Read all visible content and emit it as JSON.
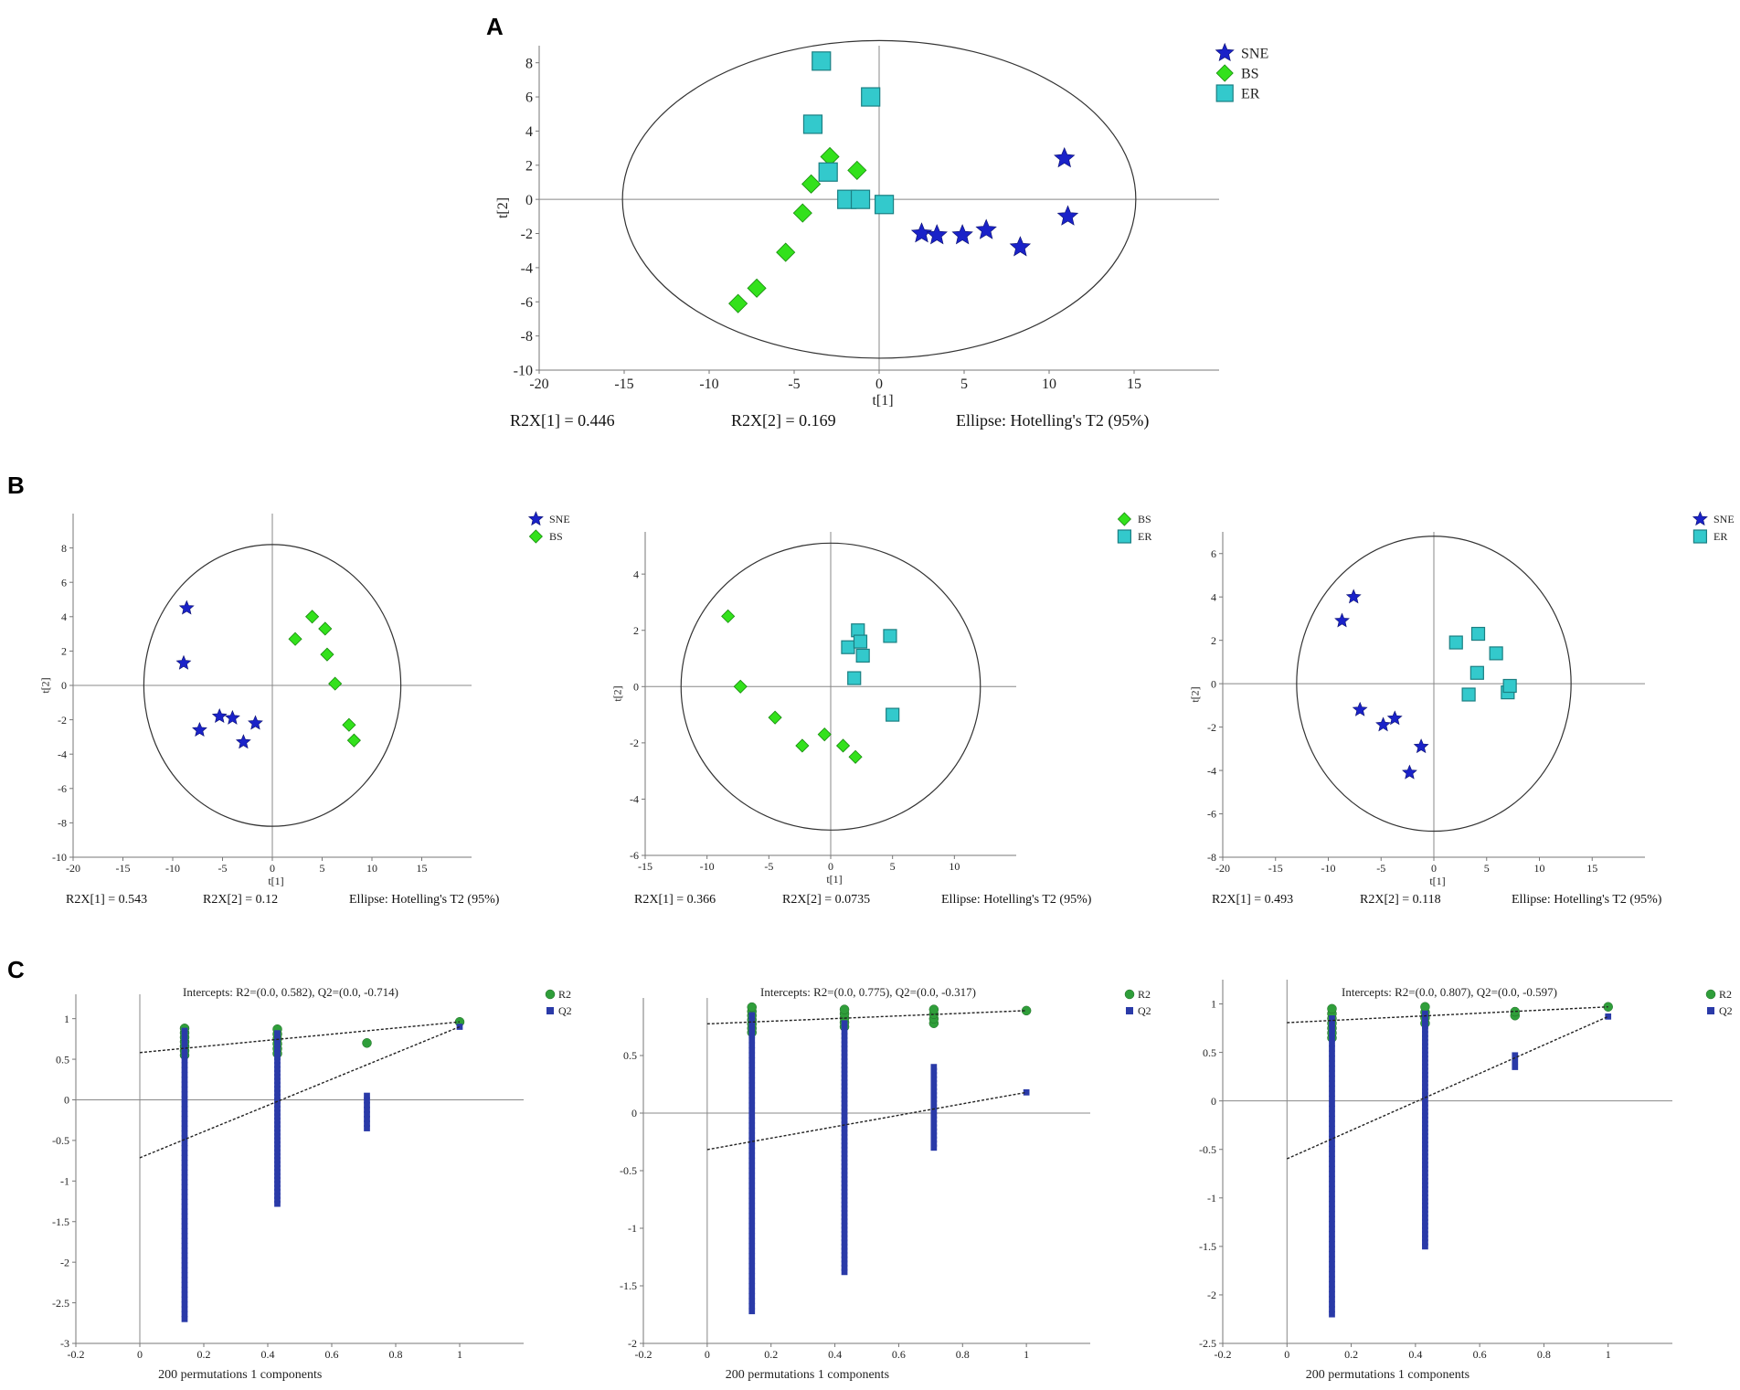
{
  "panel_labels": {
    "a": "A",
    "b": "B",
    "c": "C"
  },
  "colors": {
    "SNE": "#1a22c8",
    "BS": "#33e11c",
    "ER": "#33c9cc",
    "R2": "#2f9e3a",
    "Q2": "#2a3aa8"
  },
  "chart_data": [
    {
      "id": "A",
      "type": "scatter",
      "title": "",
      "xlabel": "t[1]",
      "ylabel": "t[2]",
      "xlim": [
        -20,
        20
      ],
      "ylim": [
        -10,
        9
      ],
      "xticks": [
        -20,
        -15,
        -10,
        -5,
        0,
        5,
        10,
        15
      ],
      "yticks": [
        -10,
        -8,
        -6,
        -4,
        -2,
        0,
        2,
        4,
        6,
        8
      ],
      "ellipse": {
        "rx": 15.1,
        "ry": 9.3
      },
      "legend": [
        "SNE",
        "BS",
        "ER"
      ],
      "series": [
        {
          "name": "SNE",
          "marker": "star",
          "points": [
            [
              2.5,
              -2.0
            ],
            [
              3.4,
              -2.1
            ],
            [
              4.9,
              -2.1
            ],
            [
              6.3,
              -1.8
            ],
            [
              8.3,
              -2.8
            ],
            [
              10.9,
              2.4
            ],
            [
              11.1,
              -1.0
            ]
          ]
        },
        {
          "name": "BS",
          "marker": "diamond",
          "points": [
            [
              -8.3,
              -6.1
            ],
            [
              -7.2,
              -5.2
            ],
            [
              -5.5,
              -3.1
            ],
            [
              -4.5,
              -0.8
            ],
            [
              -4.0,
              0.9
            ],
            [
              -2.9,
              2.5
            ],
            [
              -1.3,
              1.7
            ]
          ]
        },
        {
          "name": "ER",
          "marker": "square",
          "points": [
            [
              -3.4,
              8.1
            ],
            [
              -3.9,
              4.4
            ],
            [
              -0.5,
              6.0
            ],
            [
              -3.0,
              1.6
            ],
            [
              -1.9,
              0.0
            ],
            [
              -1.1,
              0.0
            ],
            [
              0.3,
              -0.3
            ]
          ]
        }
      ],
      "captions": [
        "R2X[1] = 0.446",
        "R2X[2] = 0.169",
        "Ellipse: Hotelling's T2 (95%)"
      ]
    },
    {
      "id": "B1",
      "type": "scatter",
      "title": "",
      "xlabel": "t[1]",
      "ylabel": "t[2]",
      "xlim": [
        -20,
        20
      ],
      "ylim": [
        -10,
        10
      ],
      "xticks": [
        -20,
        -15,
        -10,
        -5,
        0,
        5,
        10,
        15
      ],
      "yticks": [
        -10,
        -8,
        -6,
        -4,
        -2,
        0,
        2,
        4,
        6,
        8
      ],
      "ellipse": {
        "rx": 12.9,
        "ry": 8.2
      },
      "legend": [
        "SNE",
        "BS"
      ],
      "series": [
        {
          "name": "SNE",
          "marker": "star",
          "points": [
            [
              -8.6,
              4.5
            ],
            [
              -8.9,
              1.3
            ],
            [
              -7.3,
              -2.6
            ],
            [
              -5.3,
              -1.8
            ],
            [
              -4.0,
              -1.9
            ],
            [
              -2.9,
              -3.3
            ],
            [
              -1.7,
              -2.2
            ]
          ]
        },
        {
          "name": "BS",
          "marker": "diamond",
          "points": [
            [
              2.3,
              2.7
            ],
            [
              4.0,
              4.0
            ],
            [
              5.3,
              3.3
            ],
            [
              5.5,
              1.8
            ],
            [
              6.3,
              0.1
            ],
            [
              7.7,
              -2.3
            ],
            [
              8.2,
              -3.2
            ]
          ]
        }
      ],
      "captions": [
        "R2X[1] = 0.543",
        "R2X[2] = 0.12",
        "Ellipse: Hotelling's T2 (95%)"
      ]
    },
    {
      "id": "B2",
      "type": "scatter",
      "title": "",
      "xlabel": "t[1]",
      "ylabel": "t[2]",
      "xlim": [
        -15,
        15
      ],
      "ylim": [
        -6,
        5.5
      ],
      "xticks": [
        -15,
        -10,
        -5,
        0,
        5,
        10
      ],
      "yticks": [
        -6,
        -4,
        -2,
        0,
        2,
        4
      ],
      "ellipse": {
        "rx": 12.1,
        "ry": 5.1
      },
      "legend": [
        "BS",
        "ER"
      ],
      "series": [
        {
          "name": "BS",
          "marker": "diamond",
          "points": [
            [
              -8.3,
              2.5
            ],
            [
              -7.3,
              0.0
            ],
            [
              -4.5,
              -1.1
            ],
            [
              -2.3,
              -2.1
            ],
            [
              -0.5,
              -1.7
            ],
            [
              1.0,
              -2.1
            ],
            [
              2.0,
              -2.5
            ]
          ]
        },
        {
          "name": "ER",
          "marker": "square",
          "points": [
            [
              1.4,
              1.4
            ],
            [
              2.2,
              2.0
            ],
            [
              2.4,
              1.6
            ],
            [
              2.6,
              1.1
            ],
            [
              1.9,
              0.3
            ],
            [
              4.8,
              1.8
            ],
            [
              5.0,
              -1.0
            ]
          ]
        }
      ],
      "captions": [
        "R2X[1] = 0.366",
        "R2X[2] = 0.0735",
        "Ellipse: Hotelling's T2 (95%)"
      ]
    },
    {
      "id": "B3",
      "type": "scatter",
      "title": "",
      "xlabel": "t[1]",
      "ylabel": "t[2]",
      "xlim": [
        -20,
        20
      ],
      "ylim": [
        -8,
        7
      ],
      "xticks": [
        -20,
        -15,
        -10,
        -5,
        0,
        5,
        10,
        15
      ],
      "yticks": [
        -8,
        -6,
        -4,
        -2,
        0,
        2,
        4,
        6
      ],
      "ellipse": {
        "rx": 13.0,
        "ry": 6.8
      },
      "legend": [
        "SNE",
        "ER"
      ],
      "series": [
        {
          "name": "SNE",
          "marker": "star",
          "points": [
            [
              -8.7,
              2.9
            ],
            [
              -7.6,
              4.0
            ],
            [
              -7.0,
              -1.2
            ],
            [
              -4.8,
              -1.9
            ],
            [
              -3.7,
              -1.6
            ],
            [
              -1.2,
              -2.9
            ],
            [
              -2.3,
              -4.1
            ]
          ]
        },
        {
          "name": "ER",
          "marker": "square",
          "points": [
            [
              2.1,
              1.9
            ],
            [
              4.2,
              2.3
            ],
            [
              5.9,
              1.4
            ],
            [
              4.1,
              0.5
            ],
            [
              3.3,
              -0.5
            ],
            [
              7.0,
              -0.4
            ],
            [
              7.2,
              -0.1
            ]
          ]
        }
      ],
      "captions": [
        "R2X[1] = 0.493",
        "R2X[2] = 0.118",
        "Ellipse: Hotelling's T2 (95%)"
      ]
    },
    {
      "id": "C1",
      "type": "scatter",
      "title": "Intercepts: R2=(0.0, 0.582), Q2=(0.0, -0.714)",
      "xlabel": "200 permutations 1 components",
      "ylabel": "",
      "xlim": [
        -0.2,
        1.2
      ],
      "ylim": [
        -3.0,
        1.3
      ],
      "xticks": [
        -0.2,
        0,
        0.2,
        0.4,
        0.6,
        0.8,
        1
      ],
      "yticks": [
        -3,
        -2.5,
        -2,
        -1.5,
        -1,
        -0.5,
        0,
        0.5,
        1
      ],
      "legend": [
        "R2",
        "Q2"
      ],
      "trend_lines": [
        {
          "name": "R2",
          "from": [
            0,
            0.582
          ],
          "to": [
            1,
            0.96
          ]
        },
        {
          "name": "Q2",
          "from": [
            0,
            -0.714
          ],
          "to": [
            1,
            0.9
          ]
        }
      ],
      "series": [
        {
          "name": "R2",
          "marker": "circle",
          "x_groups": [
            0.14,
            0.43,
            0.71,
            1.0
          ],
          "ranges": [
            [
              0.55,
              0.88
            ],
            [
              0.57,
              0.87
            ],
            [
              0.7,
              0.7
            ],
            [
              0.96,
              0.96
            ]
          ]
        },
        {
          "name": "Q2",
          "marker": "square-small",
          "x_groups": [
            0.14,
            0.43,
            0.71,
            1.0
          ],
          "ranges": [
            [
              -2.7,
              0.85
            ],
            [
              -1.28,
              0.82
            ],
            [
              -0.35,
              0.05
            ],
            [
              0.9,
              0.9
            ]
          ]
        }
      ]
    },
    {
      "id": "C2",
      "type": "scatter",
      "title": "Intercepts: R2=(0.0, 0.775), Q2=(0.0, -0.317)",
      "xlabel": "200 permutations 1 components",
      "ylabel": "",
      "xlim": [
        -0.2,
        1.2
      ],
      "ylim": [
        -2.0,
        1.0
      ],
      "xticks": [
        -0.2,
        0,
        0.2,
        0.4,
        0.6,
        0.8,
        1
      ],
      "yticks": [
        -2,
        -1.5,
        -1,
        -0.5,
        0,
        0.5
      ],
      "legend": [
        "R2",
        "Q2"
      ],
      "trend_lines": [
        {
          "name": "R2",
          "from": [
            0,
            0.775
          ],
          "to": [
            1,
            0.89
          ]
        },
        {
          "name": "Q2",
          "from": [
            0,
            -0.317
          ],
          "to": [
            1,
            0.18
          ]
        }
      ],
      "series": [
        {
          "name": "R2",
          "marker": "circle",
          "x_groups": [
            0.14,
            0.43,
            0.71,
            1.0
          ],
          "ranges": [
            [
              0.7,
              0.92
            ],
            [
              0.75,
              0.9
            ],
            [
              0.78,
              0.9
            ],
            [
              0.89,
              0.89
            ]
          ]
        },
        {
          "name": "Q2",
          "marker": "square-small",
          "x_groups": [
            0.14,
            0.43,
            0.71,
            1.0
          ],
          "ranges": [
            [
              -1.72,
              0.85
            ],
            [
              -1.38,
              0.78
            ],
            [
              -0.3,
              0.4
            ],
            [
              0.18,
              0.18
            ]
          ]
        }
      ]
    },
    {
      "id": "C3",
      "type": "scatter",
      "title": "Intercepts: R2=(0.0, 0.807), Q2=(0.0, -0.597)",
      "xlabel": "200 permutations 1 components",
      "ylabel": "",
      "xlim": [
        -0.2,
        1.2
      ],
      "ylim": [
        -2.5,
        1.25
      ],
      "xticks": [
        -0.2,
        0,
        0.2,
        0.4,
        0.6,
        0.8,
        1
      ],
      "yticks": [
        -2.5,
        -2,
        -1.5,
        -1,
        -0.5,
        0,
        0.5,
        1
      ],
      "legend": [
        "R2",
        "Q2"
      ],
      "trend_lines": [
        {
          "name": "R2",
          "from": [
            0,
            0.807
          ],
          "to": [
            1,
            0.97
          ]
        },
        {
          "name": "Q2",
          "from": [
            0,
            -0.597
          ],
          "to": [
            1,
            0.87
          ]
        }
      ],
      "series": [
        {
          "name": "R2",
          "marker": "circle",
          "x_groups": [
            0.14,
            0.43,
            0.71,
            1.0
          ],
          "ranges": [
            [
              0.65,
              0.95
            ],
            [
              0.8,
              0.97
            ],
            [
              0.88,
              0.92
            ],
            [
              0.97,
              0.97
            ]
          ]
        },
        {
          "name": "Q2",
          "marker": "square-small",
          "x_groups": [
            0.14,
            0.43,
            0.71,
            1.0
          ],
          "ranges": [
            [
              -2.2,
              0.85
            ],
            [
              -1.5,
              0.9
            ],
            [
              0.35,
              0.47
            ],
            [
              0.87,
              0.87
            ]
          ]
        }
      ]
    }
  ]
}
